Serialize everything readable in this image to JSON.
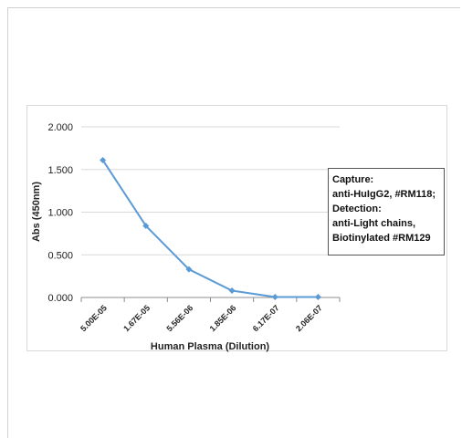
{
  "chart_data": {
    "type": "line",
    "title": "",
    "xlabel": "Human Plasma (Dilution)",
    "ylabel": "Abs (450nm)",
    "categories": [
      "5.00E-05",
      "1.67E-05",
      "5.56E-06",
      "1.85E-06",
      "6.17E-07",
      "2.06E-07"
    ],
    "series": [
      {
        "values": [
          1.61,
          0.84,
          0.33,
          0.08,
          0.005,
          0.005
        ],
        "color": "#5b9bd5"
      }
    ],
    "ylim": [
      0,
      2
    ],
    "yticks": [
      "0.000",
      "0.500",
      "1.000",
      "1.500",
      "2.000"
    ],
    "grid": "horizontal",
    "legend_text": [
      "Capture:",
      "anti-HuIgG2, #RM118;",
      "Detection:",
      "anti-Light chains,",
      "Biotinylated #RM129"
    ]
  }
}
